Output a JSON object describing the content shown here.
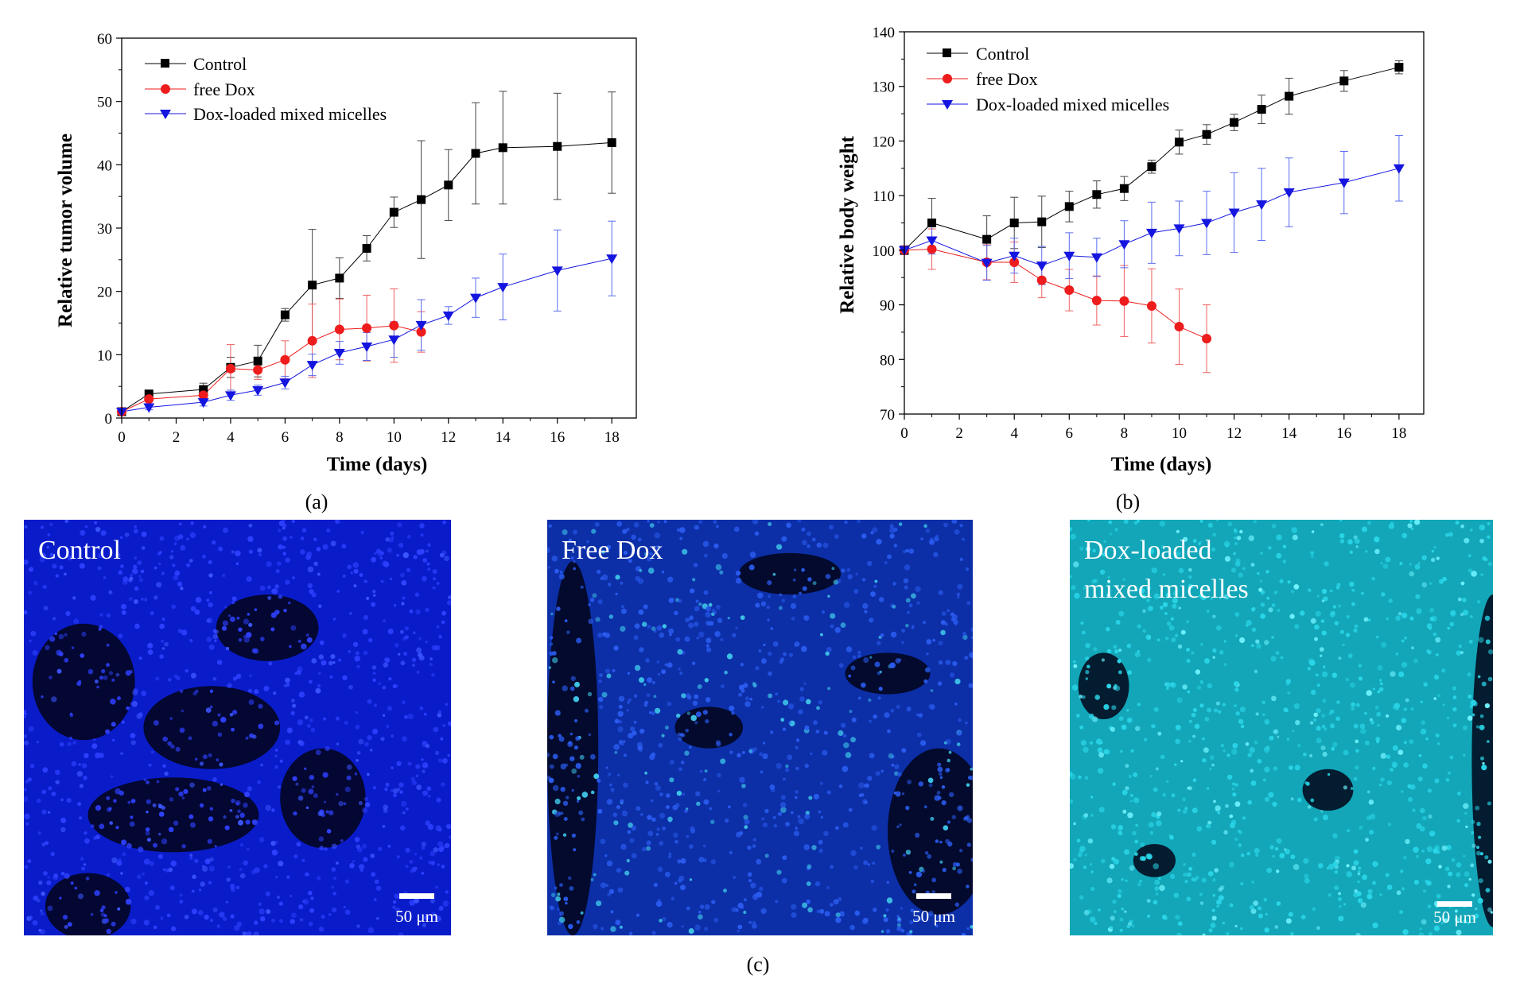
{
  "chart_data": [
    {
      "type": "line",
      "panel_label": "a",
      "xlabel": "Time (days)",
      "ylabel": "Relative tumor volume",
      "xlim": [
        0,
        18.9
      ],
      "ylim": [
        0,
        60
      ],
      "xticks": [
        0,
        2,
        4,
        6,
        8,
        10,
        12,
        14,
        16,
        18
      ],
      "yticks": [
        0,
        10,
        20,
        30,
        40,
        50,
        60
      ],
      "legend_position": "top-left",
      "series": [
        {
          "name": "Control",
          "color": "#000000",
          "marker": "square",
          "x": [
            0,
            1,
            3,
            4,
            5,
            6,
            7,
            8,
            9,
            10,
            11,
            12,
            13,
            14,
            16,
            18
          ],
          "y": [
            1,
            3.8,
            4.5,
            8,
            9,
            16.3,
            21,
            22.1,
            26.8,
            32.5,
            34.5,
            36.8,
            41.8,
            42.7,
            42.9,
            43.5
          ],
          "err": [
            0.3,
            0.5,
            1,
            1.6,
            2.5,
            1,
            8.8,
            3.2,
            2,
            2.4,
            9.3,
            5.6,
            8,
            8.9,
            8.4,
            8
          ]
        },
        {
          "name": "free Dox",
          "color": "#ee1c1c",
          "marker": "circle",
          "x": [
            0,
            1,
            3,
            4,
            5,
            6,
            7,
            8,
            9,
            10,
            11
          ],
          "y": [
            1,
            3,
            3.6,
            7.8,
            7.6,
            9.2,
            12.2,
            14,
            14.2,
            14.6,
            13.6
          ],
          "err": [
            0.3,
            0.5,
            0.7,
            3.8,
            1.5,
            3,
            5.8,
            4.8,
            5.2,
            5.8,
            3.2
          ]
        },
        {
          "name": "Dox-loaded mixed micelles",
          "color": "#1515e0",
          "marker": "triangle-down",
          "x": [
            0,
            1,
            3,
            4,
            5,
            6,
            7,
            8,
            9,
            10,
            11,
            12,
            13,
            14,
            16,
            18
          ],
          "y": [
            1,
            1.7,
            2.5,
            3.6,
            4.4,
            5.6,
            8.4,
            10.3,
            11.3,
            12.4,
            14.7,
            16.2,
            19,
            20.7,
            23.3,
            25.2
          ],
          "err": [
            0.3,
            0.4,
            0.6,
            0.8,
            0.8,
            1,
            1.7,
            1.8,
            2.2,
            2.8,
            4,
            1.4,
            3.1,
            5.2,
            6.4,
            5.9
          ]
        }
      ]
    },
    {
      "type": "line",
      "panel_label": "b",
      "xlabel": "Time (days)",
      "ylabel": "Relative body weight",
      "xlim": [
        0,
        18.9
      ],
      "ylim": [
        70,
        140
      ],
      "xticks": [
        0,
        2,
        4,
        6,
        8,
        10,
        12,
        14,
        16,
        18
      ],
      "yticks": [
        70,
        80,
        90,
        100,
        110,
        120,
        130,
        140
      ],
      "legend_position": "top-left",
      "series": [
        {
          "name": "Control",
          "color": "#000000",
          "marker": "square",
          "x": [
            0,
            1,
            3,
            4,
            5,
            6,
            7,
            8,
            9,
            10,
            11,
            12,
            13,
            14,
            16,
            18
          ],
          "y": [
            100,
            105,
            102,
            105,
            105.2,
            108,
            110.2,
            111.3,
            115.3,
            119.8,
            121.2,
            123.4,
            125.8,
            128.2,
            131,
            133.5
          ],
          "err": [
            0.8,
            4.5,
            4.3,
            4.7,
            4.7,
            2.8,
            2.5,
            2.2,
            1.2,
            2.2,
            1.8,
            1.5,
            2.6,
            3.3,
            1.9,
            1.2
          ]
        },
        {
          "name": "free Dox",
          "color": "#ee1c1c",
          "marker": "circle",
          "x": [
            0,
            1,
            3,
            4,
            5,
            6,
            7,
            8,
            9,
            10,
            11
          ],
          "y": [
            100,
            100.2,
            97.8,
            97.8,
            94.5,
            92.7,
            90.8,
            90.7,
            89.8,
            86,
            83.8
          ],
          "err": [
            0.8,
            3.7,
            3.2,
            3.7,
            3.2,
            3.8,
            4.5,
            6.5,
            6.8,
            6.9,
            6.2
          ]
        },
        {
          "name": "Dox-loaded mixed micelles",
          "color": "#1515e0",
          "marker": "triangle-down",
          "x": [
            0,
            1,
            3,
            4,
            5,
            6,
            7,
            8,
            9,
            10,
            11,
            12,
            13,
            14,
            16,
            18
          ],
          "y": [
            100,
            101.8,
            97.7,
            99,
            97.2,
            99,
            98.7,
            101.1,
            103.2,
            104,
            105,
            106.9,
            108.4,
            110.6,
            112.4,
            115
          ],
          "err": [
            0.8,
            2.5,
            3.2,
            3.2,
            3.5,
            4.2,
            3.5,
            4.3,
            5.6,
            5,
            5.8,
            7.3,
            6.6,
            6.3,
            5.7,
            6
          ]
        }
      ]
    }
  ],
  "legend": {
    "control": "Control",
    "free_dox": "free Dox",
    "micelles": "Dox-loaded mixed micelles"
  },
  "panel_labels": {
    "a": "(a)",
    "b": "(b)",
    "c": "(c)"
  },
  "micrographs": [
    {
      "label_lines": [
        "Control"
      ],
      "scale_bar": "50 μm",
      "base_color": "#0a1cc9",
      "cell_color": "#2f41ff",
      "accent_color": "#3c56ff"
    },
    {
      "label_lines": [
        "Free Dox"
      ],
      "scale_bar": "50 μm",
      "base_color": "#0c2fa8",
      "cell_color": "#2b5cf0",
      "accent_color": "#3fc6e8"
    },
    {
      "label_lines": [
        "Dox-loaded",
        "mixed micelles"
      ],
      "scale_bar": "50 μm",
      "base_color": "#12a6b8",
      "cell_color": "#2ad6e8",
      "accent_color": "#6ff2ff"
    }
  ]
}
